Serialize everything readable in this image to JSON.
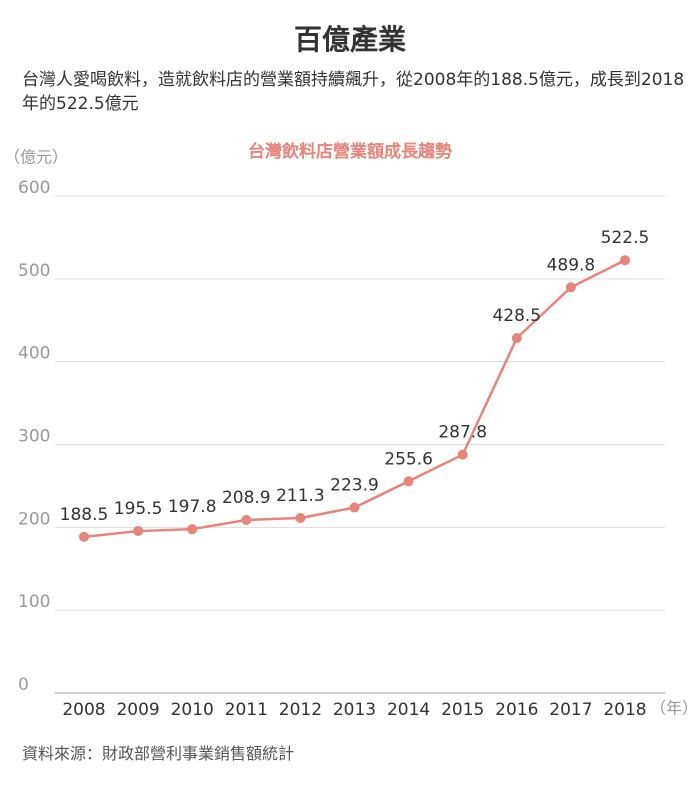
{
  "chart_data": {
    "type": "line",
    "title": "百億產業",
    "subtitle": "台灣人愛喝飲料，造就飲料店的營業額持續飆升，從2008年的188.5億元，成長到2018年的522.5億元",
    "chart_title": "台灣飲料店營業額成長趨勢",
    "y_label": "（億元）",
    "x_label": "（年）",
    "source": "資料來源：財政部營利事業銷售額統計",
    "categories": [
      "2008",
      "2009",
      "2010",
      "2011",
      "2012",
      "2013",
      "2014",
      "2015",
      "2016",
      "2017",
      "2018"
    ],
    "values": [
      188.5,
      195.5,
      197.8,
      208.9,
      211.3,
      223.9,
      255.6,
      287.8,
      428.5,
      489.8,
      522.5
    ],
    "color": "#e8847a",
    "ylim": [
      0,
      600
    ],
    "yticks": [
      0,
      100,
      200,
      300,
      400,
      500,
      600
    ],
    "grid": true
  }
}
